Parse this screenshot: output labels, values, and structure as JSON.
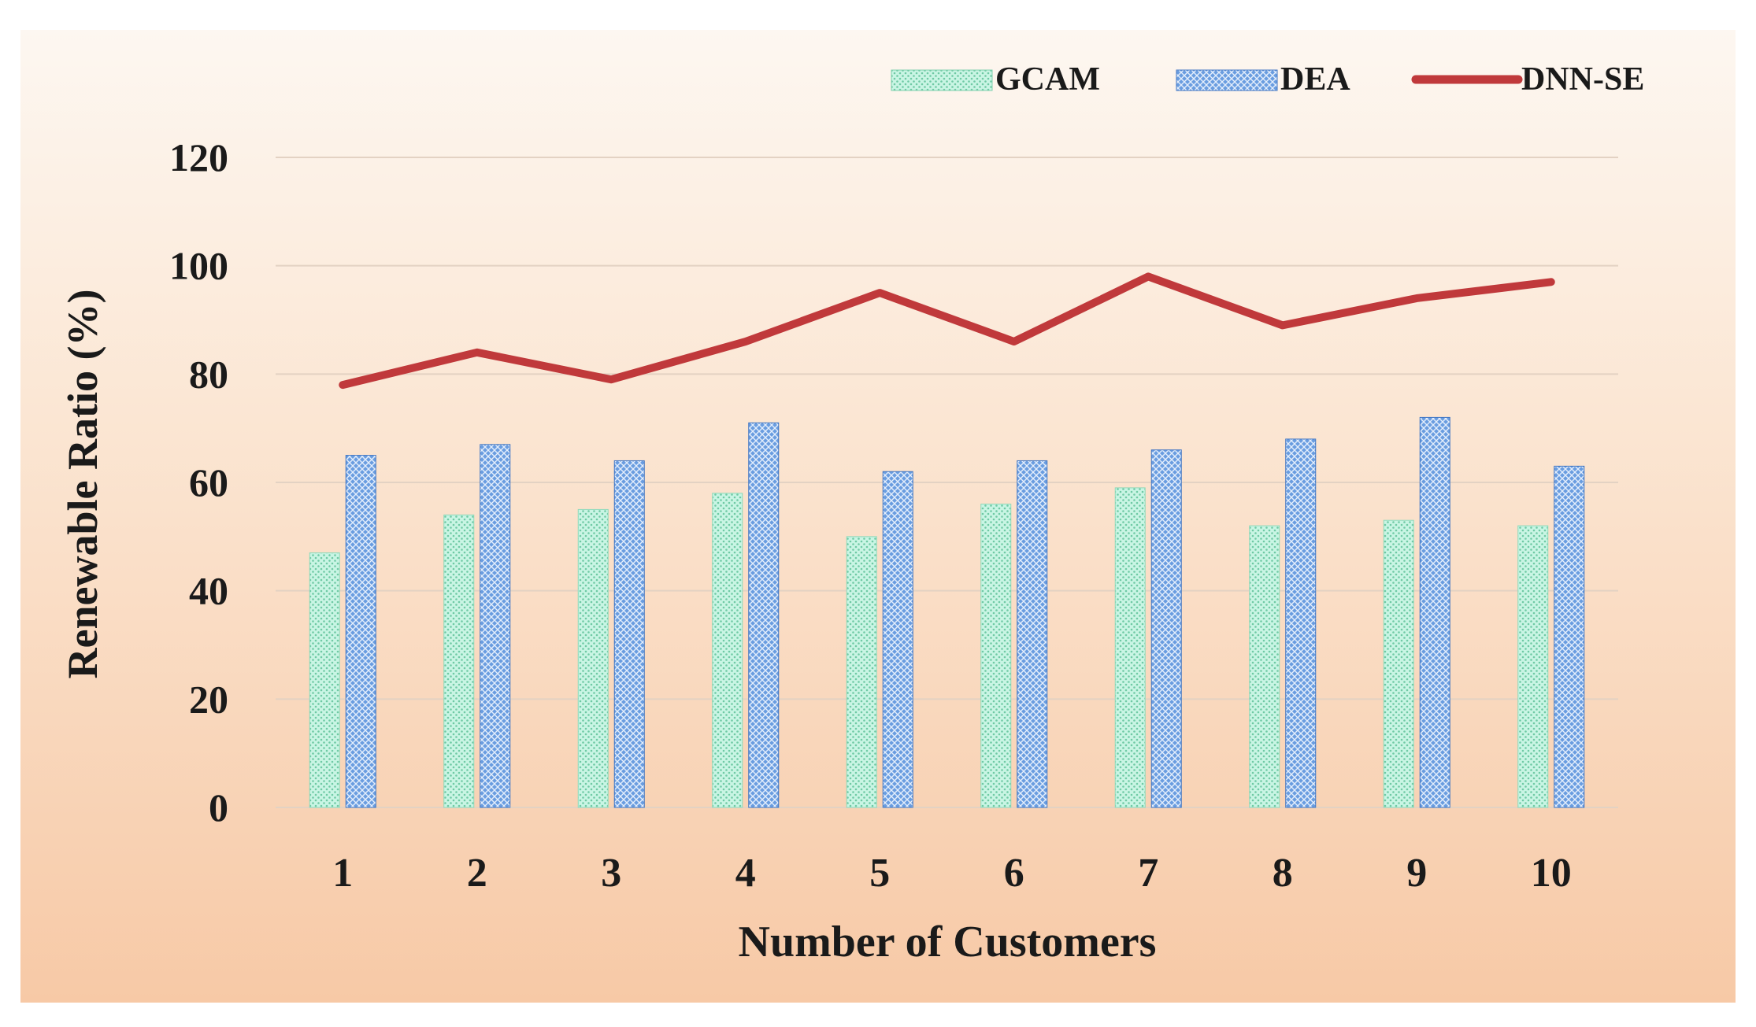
{
  "chart_data": {
    "type": "bar",
    "title": "",
    "xlabel": "Number of Customers",
    "ylabel": "Renewable Ratio (%)",
    "ylim": [
      0,
      120
    ],
    "yticks": [
      0,
      20,
      40,
      60,
      80,
      100,
      120
    ],
    "grid": true,
    "legend_position": "top-right",
    "categories": [
      "1",
      "2",
      "3",
      "4",
      "5",
      "6",
      "7",
      "8",
      "9",
      "10"
    ],
    "series": [
      {
        "name": "GCAM",
        "type": "bar",
        "color": "#b8efd9",
        "values": [
          47,
          54,
          55,
          58,
          50,
          56,
          59,
          52,
          53,
          52
        ]
      },
      {
        "name": "DEA",
        "type": "bar",
        "color": "#5b8fd6",
        "values": [
          65,
          67,
          64,
          71,
          62,
          64,
          66,
          68,
          72,
          63
        ]
      },
      {
        "name": "DNN-SE",
        "type": "line",
        "color": "#c0393b",
        "values": [
          78,
          84,
          79,
          86,
          95,
          86,
          98,
          89,
          94,
          97
        ]
      }
    ]
  }
}
